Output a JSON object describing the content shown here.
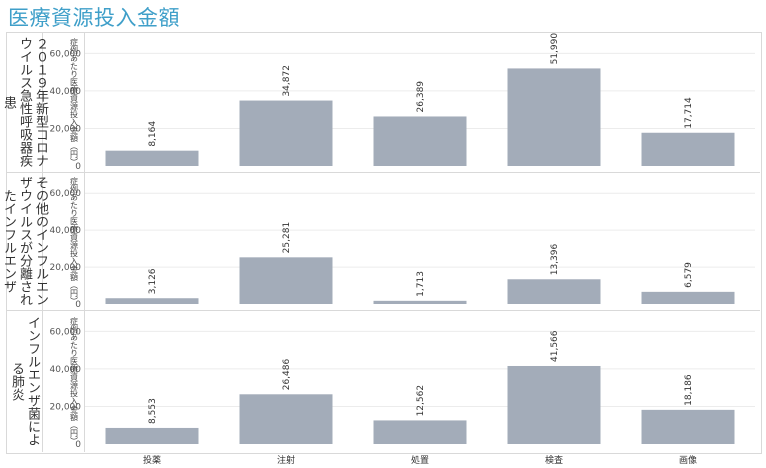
{
  "title": "医療資源投入金額",
  "chart_data": {
    "type": "bar",
    "ylabel": "症例あたり医療資源投入金額（円）",
    "categories": [
      "投薬",
      "注射",
      "処置",
      "検査",
      "画像"
    ],
    "ylim": [
      0,
      65000
    ],
    "yticks": [
      "0",
      "20,000",
      "40,000",
      "60,000"
    ],
    "bar_color": "#a3acb9",
    "panels": [
      {
        "row_label": "２０１９年新型コロナウイルス急性呼吸器疾患",
        "values": [
          8164,
          34872,
          26389,
          51990,
          17714
        ],
        "value_labels": [
          "8,164",
          "34,872",
          "26,389",
          "51,990",
          "17,714"
        ]
      },
      {
        "row_label": "その他のインフルエンザウイルスが分離されたインフルエンザ",
        "values": [
          3126,
          25281,
          1713,
          13396,
          6579
        ],
        "value_labels": [
          "3,126",
          "25,281",
          "1,713",
          "13,396",
          "6,579"
        ]
      },
      {
        "row_label": "インフルエンザ菌による肺炎",
        "values": [
          8553,
          26486,
          12562,
          41566,
          18186
        ],
        "value_labels": [
          "8,553",
          "26,486",
          "12,562",
          "41,566",
          "18,186"
        ]
      }
    ]
  }
}
